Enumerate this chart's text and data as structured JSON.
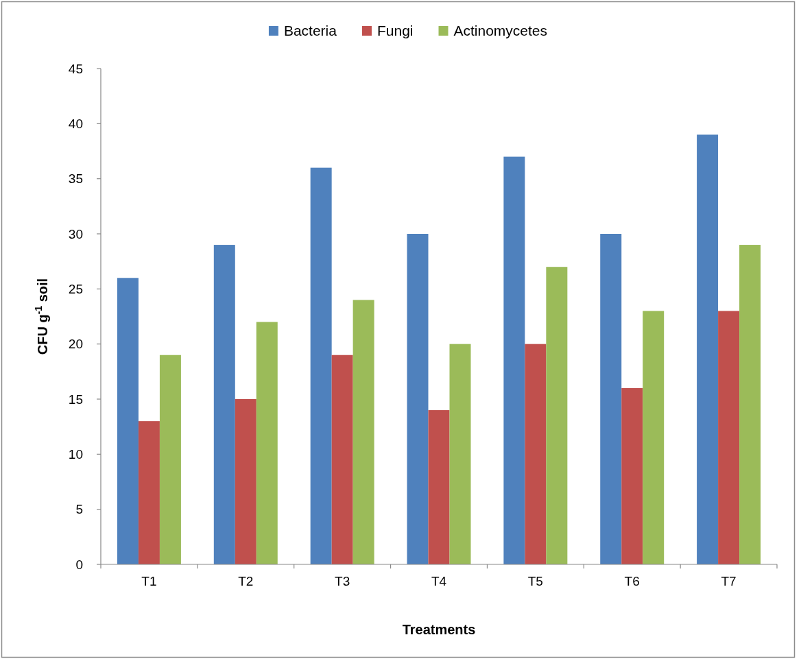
{
  "chart_data": {
    "type": "bar",
    "xlabel": "Treatments",
    "ylabel": "CFU g$^{-1}$ soil",
    "categories": [
      "T1",
      "T2",
      "T3",
      "T4",
      "T5",
      "T6",
      "T7"
    ],
    "series": [
      {
        "name": "Bacteria",
        "color": "#4f81bd",
        "values": [
          26,
          29,
          36,
          30,
          37,
          30,
          39
        ]
      },
      {
        "name": "Fungi",
        "color": "#c0504d",
        "values": [
          13,
          15,
          19,
          14,
          20,
          16,
          23
        ]
      },
      {
        "name": "Actinomycetes",
        "color": "#9bbb59",
        "values": [
          19,
          22,
          24,
          20,
          27,
          23,
          29
        ]
      }
    ],
    "ylim": [
      0,
      45
    ],
    "yticks": [
      0,
      5,
      10,
      15,
      20,
      25,
      30,
      35,
      40,
      45
    ],
    "grid": false,
    "legend": "top"
  }
}
